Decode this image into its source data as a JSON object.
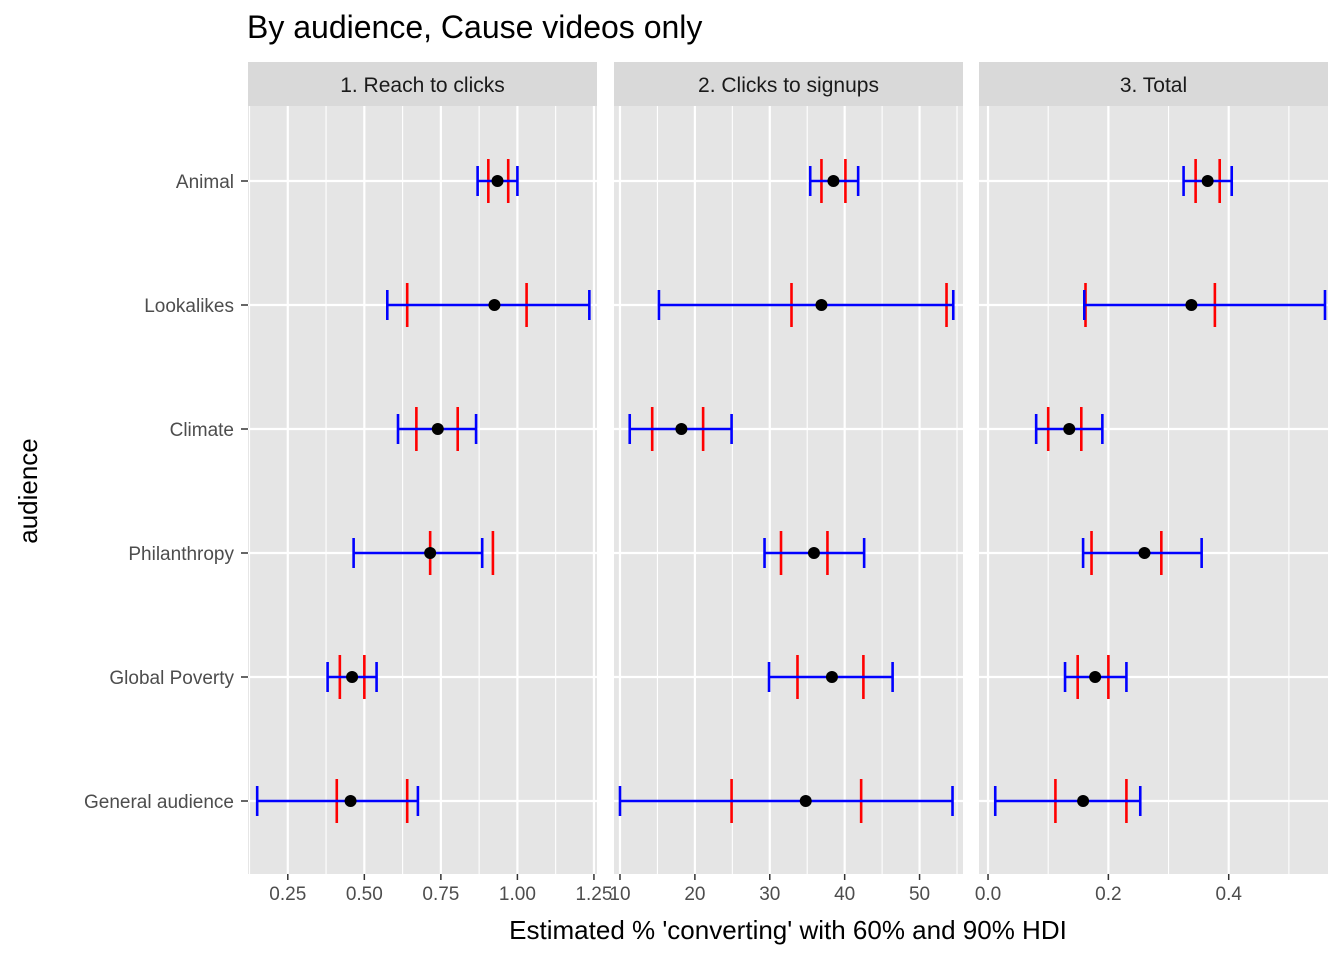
{
  "chart_data": {
    "type": "interval",
    "title": "By audience, Cause videos only",
    "xlabel": "Estimated % 'converting' with 60% and 90% HDI",
    "ylabel": "audience",
    "categories": [
      "Animal",
      "Lookalikes",
      "Climate",
      "Philanthropy",
      "Global Poverty",
      "General audience"
    ],
    "legend": "none",
    "grid": true,
    "colors": {
      "hdi90": "#0000ff",
      "hdi60": "#ff0000",
      "point": "#000000",
      "panel_bg": "#e5e5e5",
      "strip_bg": "#d9d9d9",
      "grid": "#ffffff"
    },
    "panels": [
      {
        "label": "1. Reach to clicks",
        "xlim": [
          0.12,
          1.26
        ],
        "xticks": [
          0.25,
          0.5,
          0.75,
          1.0,
          1.25
        ],
        "xtick_labels": [
          "0.25",
          "0.50",
          "0.75",
          "1.00",
          "1.25"
        ],
        "data": [
          {
            "category": "Animal",
            "point": 0.935,
            "hdi60": [
              0.905,
              0.97
            ],
            "hdi90": [
              0.87,
              1.0
            ]
          },
          {
            "category": "Lookalikes",
            "point": 0.925,
            "hdi60": [
              0.64,
              1.03
            ],
            "hdi90": [
              0.575,
              1.235
            ]
          },
          {
            "category": "Climate",
            "point": 0.74,
            "hdi60": [
              0.67,
              0.805
            ],
            "hdi90": [
              0.61,
              0.865
            ]
          },
          {
            "category": "Philanthropy",
            "point": 0.715,
            "hdi60": [
              0.715,
              0.92
            ],
            "hdi90": [
              0.465,
              0.885
            ]
          },
          {
            "category": "Global Poverty",
            "point": 0.46,
            "hdi60": [
              0.42,
              0.5
            ],
            "hdi90": [
              0.38,
              0.54
            ]
          },
          {
            "category": "General audience",
            "point": 0.455,
            "hdi60": [
              0.41,
              0.64
            ],
            "hdi90": [
              0.15,
              0.675
            ]
          }
        ]
      },
      {
        "label": "2. Clicks to signups",
        "xlim": [
          9.2,
          55.8
        ],
        "xticks": [
          10,
          20,
          30,
          40,
          50
        ],
        "xtick_labels": [
          "10",
          "20",
          "30",
          "40",
          "50"
        ],
        "data": [
          {
            "category": "Animal",
            "point": 38.5,
            "hdi60": [
              36.9,
              40.1
            ],
            "hdi90": [
              35.4,
              41.8
            ]
          },
          {
            "category": "Lookalikes",
            "point": 36.9,
            "hdi60": [
              32.9,
              53.6
            ],
            "hdi90": [
              15.2,
              54.5
            ]
          },
          {
            "category": "Climate",
            "point": 18.2,
            "hdi60": [
              14.3,
              21.1
            ],
            "hdi90": [
              11.3,
              24.9
            ]
          },
          {
            "category": "Philanthropy",
            "point": 35.9,
            "hdi60": [
              31.5,
              37.7
            ],
            "hdi90": [
              29.3,
              42.6
            ]
          },
          {
            "category": "Global Poverty",
            "point": 38.3,
            "hdi60": [
              33.7,
              42.5
            ],
            "hdi90": [
              29.9,
              46.4
            ]
          },
          {
            "category": "General audience",
            "point": 34.8,
            "hdi60": [
              24.9,
              42.2
            ],
            "hdi90": [
              10.0,
              54.4
            ]
          }
        ]
      },
      {
        "label": "3. Total",
        "xlim": [
          -0.015,
          0.565
        ],
        "xticks": [
          0.0,
          0.2,
          0.4
        ],
        "xtick_labels": [
          "0.0",
          "0.2",
          "0.4"
        ],
        "data": [
          {
            "category": "Animal",
            "point": 0.365,
            "hdi60": [
              0.345,
              0.385
            ],
            "hdi90": [
              0.325,
              0.405
            ]
          },
          {
            "category": "Lookalikes",
            "point": 0.338,
            "hdi60": [
              0.162,
              0.377
            ],
            "hdi90": [
              0.16,
              0.56
            ]
          },
          {
            "category": "Climate",
            "point": 0.135,
            "hdi60": [
              0.1,
              0.155
            ],
            "hdi90": [
              0.08,
              0.19
            ]
          },
          {
            "category": "Philanthropy",
            "point": 0.26,
            "hdi60": [
              0.172,
              0.288
            ],
            "hdi90": [
              0.158,
              0.355
            ]
          },
          {
            "category": "Global Poverty",
            "point": 0.178,
            "hdi60": [
              0.149,
              0.2
            ],
            "hdi90": [
              0.128,
              0.23
            ]
          },
          {
            "category": "General audience",
            "point": 0.158,
            "hdi60": [
              0.112,
              0.23
            ],
            "hdi90": [
              0.012,
              0.253
            ]
          }
        ]
      }
    ]
  }
}
